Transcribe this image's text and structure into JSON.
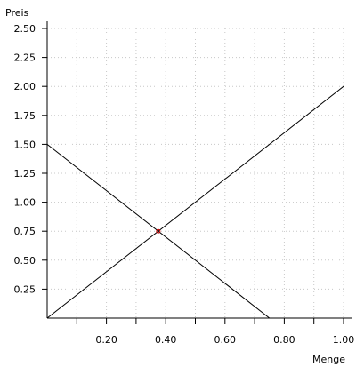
{
  "chart_data": {
    "type": "line",
    "title": "",
    "xlabel": "Menge",
    "ylabel": "Preis",
    "xlim": [
      0.0,
      1.0
    ],
    "ylim": [
      0.0,
      2.5
    ],
    "grid": true,
    "x_ticks": [
      {
        "value": 0.1,
        "label": ""
      },
      {
        "value": 0.2,
        "label": "0.20"
      },
      {
        "value": 0.3,
        "label": ""
      },
      {
        "value": 0.4,
        "label": "0.40"
      },
      {
        "value": 0.5,
        "label": ""
      },
      {
        "value": 0.6,
        "label": "0.60"
      },
      {
        "value": 0.7,
        "label": ""
      },
      {
        "value": 0.8,
        "label": "0.80"
      },
      {
        "value": 0.9,
        "label": ""
      },
      {
        "value": 1.0,
        "label": "1.00"
      }
    ],
    "y_ticks": [
      {
        "value": 0.25,
        "label": "0.25"
      },
      {
        "value": 0.5,
        "label": "0.50"
      },
      {
        "value": 0.75,
        "label": "0.75"
      },
      {
        "value": 1.0,
        "label": "1.00"
      },
      {
        "value": 1.25,
        "label": "1.25"
      },
      {
        "value": 1.5,
        "label": "1.50"
      },
      {
        "value": 1.75,
        "label": "1.75"
      },
      {
        "value": 2.0,
        "label": "2.00"
      },
      {
        "value": 2.25,
        "label": "2.25"
      },
      {
        "value": 2.5,
        "label": "2.50"
      }
    ],
    "series": [
      {
        "points": [
          [
            0.0,
            1.5
          ],
          [
            0.75,
            0.0
          ]
        ],
        "color": "#000000"
      },
      {
        "points": [
          [
            0.0,
            0.0
          ],
          [
            1.0,
            2.0
          ]
        ],
        "color": "#000000"
      }
    ],
    "marker": {
      "x": 0.375,
      "y": 0.75,
      "color": "#cc0000"
    }
  }
}
